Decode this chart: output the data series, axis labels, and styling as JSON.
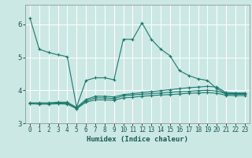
{
  "xlabel": "Humidex (Indice chaleur)",
  "bg_color": "#cce8e4",
  "grid_color": "#ffffff",
  "line_color": "#1a7a6e",
  "xlim": [
    -0.5,
    23.5
  ],
  "ylim": [
    3.0,
    6.6
  ],
  "yticks": [
    3,
    4,
    5,
    6
  ],
  "xticks": [
    0,
    1,
    2,
    3,
    4,
    5,
    6,
    7,
    8,
    9,
    10,
    11,
    12,
    13,
    14,
    15,
    16,
    17,
    18,
    19,
    20,
    21,
    22,
    23
  ],
  "series": [
    {
      "x": [
        0,
        1,
        2,
        3,
        4,
        5,
        6,
        7,
        8,
        9,
        10,
        11,
        12,
        13,
        14,
        15,
        16,
        17,
        18,
        19,
        20,
        21,
        22,
        23
      ],
      "y": [
        6.2,
        5.25,
        5.15,
        5.08,
        5.02,
        3.5,
        4.3,
        4.38,
        4.38,
        4.32,
        5.55,
        5.55,
        6.05,
        5.55,
        5.25,
        5.05,
        4.6,
        4.45,
        4.35,
        4.3,
        4.05,
        3.9,
        3.9,
        3.9
      ]
    },
    {
      "x": [
        0,
        1,
        2,
        3,
        4,
        5,
        6,
        7,
        8,
        9,
        10,
        11,
        12,
        13,
        14,
        15,
        16,
        17,
        18,
        19,
        20,
        21,
        22,
        23
      ],
      "y": [
        3.62,
        3.62,
        3.62,
        3.64,
        3.64,
        3.48,
        3.72,
        3.82,
        3.82,
        3.8,
        3.87,
        3.9,
        3.93,
        3.96,
        3.99,
        4.02,
        4.05,
        4.08,
        4.1,
        4.12,
        4.1,
        3.93,
        3.92,
        3.92
      ]
    },
    {
      "x": [
        0,
        1,
        2,
        3,
        4,
        5,
        6,
        7,
        8,
        9,
        10,
        11,
        12,
        13,
        14,
        15,
        16,
        17,
        18,
        19,
        20,
        21,
        22,
        23
      ],
      "y": [
        3.6,
        3.6,
        3.6,
        3.61,
        3.61,
        3.46,
        3.68,
        3.77,
        3.77,
        3.75,
        3.83,
        3.86,
        3.88,
        3.9,
        3.92,
        3.94,
        3.96,
        3.97,
        3.99,
        4.0,
        3.98,
        3.89,
        3.88,
        3.88
      ]
    },
    {
      "x": [
        0,
        1,
        2,
        3,
        4,
        5,
        6,
        7,
        8,
        9,
        10,
        11,
        12,
        13,
        14,
        15,
        16,
        17,
        18,
        19,
        20,
        21,
        22,
        23
      ],
      "y": [
        3.59,
        3.58,
        3.58,
        3.59,
        3.58,
        3.44,
        3.64,
        3.71,
        3.71,
        3.7,
        3.77,
        3.79,
        3.82,
        3.84,
        3.86,
        3.87,
        3.89,
        3.91,
        3.92,
        3.93,
        3.91,
        3.85,
        3.84,
        3.84
      ]
    }
  ]
}
